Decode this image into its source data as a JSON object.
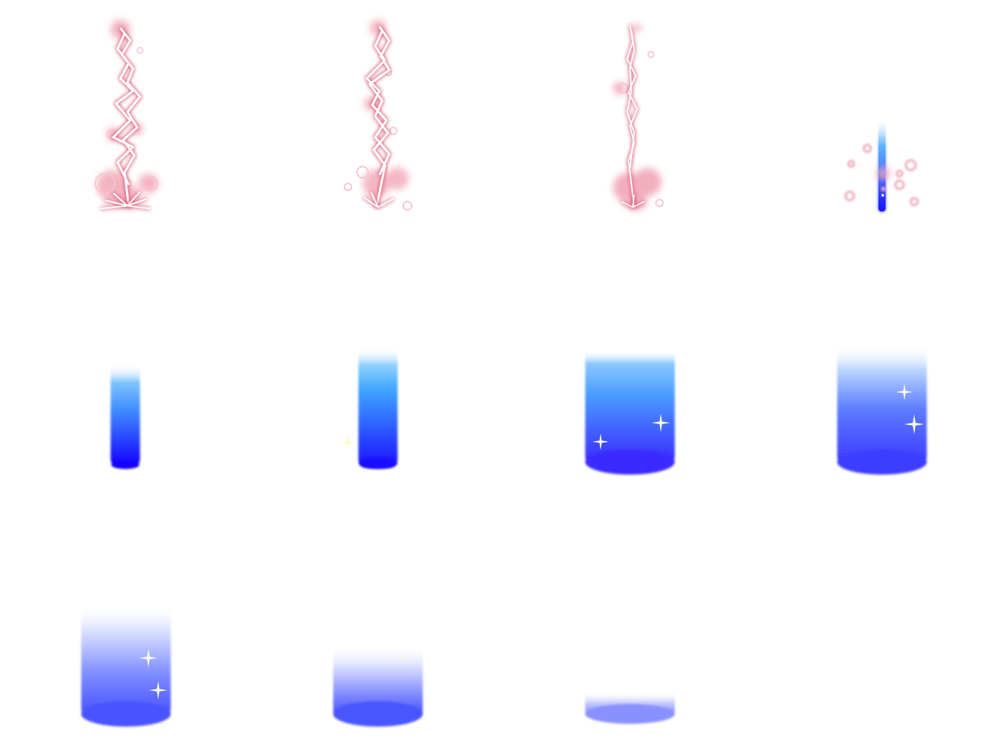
{
  "sprite_sheet": {
    "columns": 4,
    "rows": 3,
    "frames": [
      {
        "index": 1,
        "effect": "lightning-strike"
      },
      {
        "index": 2,
        "effect": "lightning-strike"
      },
      {
        "index": 3,
        "effect": "lightning-fade"
      },
      {
        "index": 4,
        "effect": "beam-spark"
      },
      {
        "index": 5,
        "effect": "beam-pillar"
      },
      {
        "index": 6,
        "effect": "beam-pillar"
      },
      {
        "index": 7,
        "effect": "beam-pillar"
      },
      {
        "index": 8,
        "effect": "beam-pillar"
      },
      {
        "index": 9,
        "effect": "beam-pillar"
      },
      {
        "index": 10,
        "effect": "beam-pillar"
      },
      {
        "index": 11,
        "effect": "beam-pillar"
      },
      {
        "index": 12,
        "effect": "empty"
      }
    ]
  },
  "colors": {
    "lightning_core": "#ffffff",
    "lightning_glow": "#e0607a",
    "beam_top": "#44aaff",
    "beam_bottom": "#1a10ff",
    "beam_soft": "#4a55ff",
    "sparkle": "#ffffff",
    "background": "#ffffff"
  }
}
